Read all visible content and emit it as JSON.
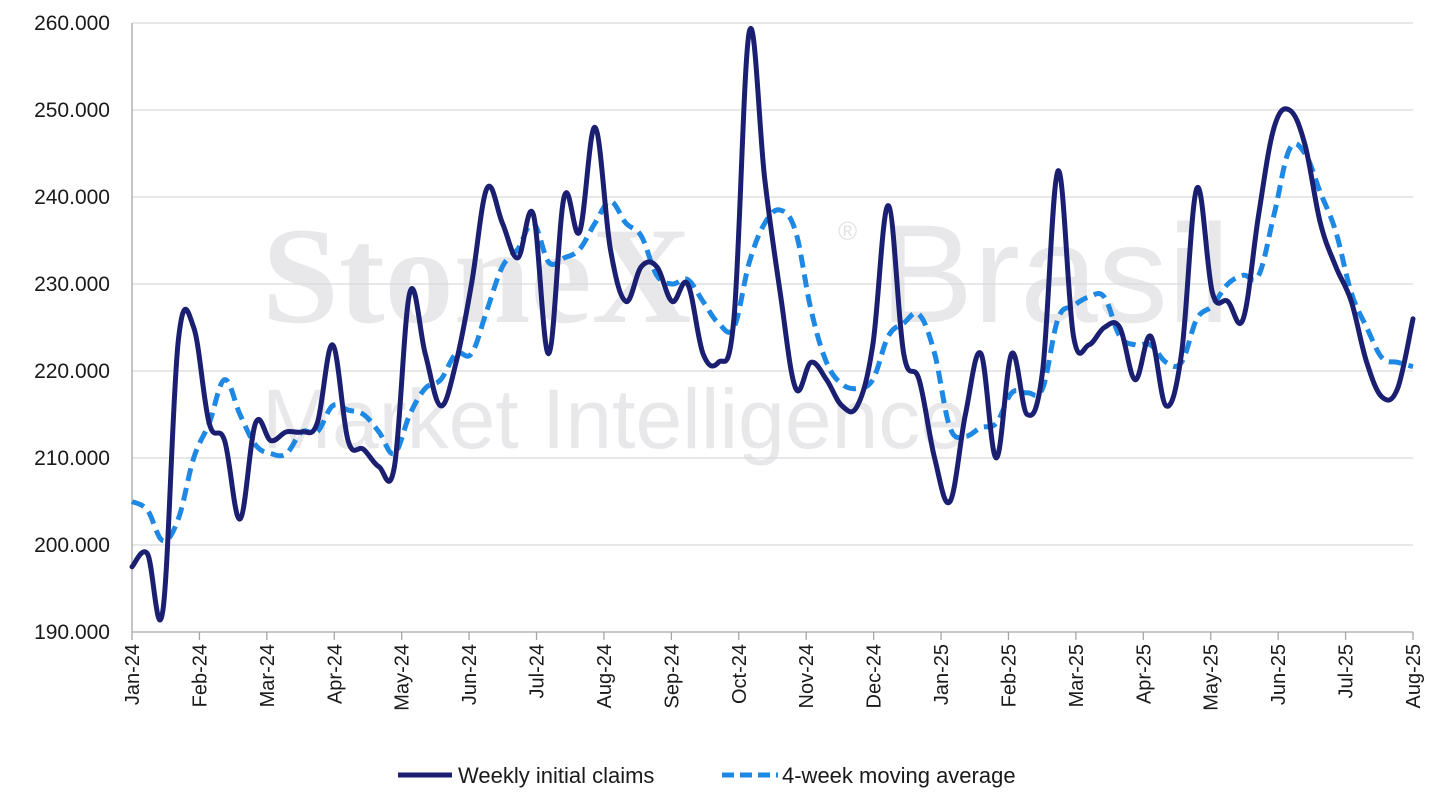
{
  "watermark": {
    "line1_a": "StoneX",
    "line1_mark": "®",
    "line1_b": "Brasil",
    "line2": "Market Intelligence"
  },
  "chart_data": {
    "type": "line",
    "title": "",
    "xlabel": "",
    "ylabel": "",
    "ylim": [
      190000,
      260000
    ],
    "y_ticks": [
      190000,
      200000,
      210000,
      220000,
      230000,
      240000,
      250000,
      260000
    ],
    "y_tick_labels": [
      "190.000",
      "200.000",
      "210.000",
      "220.000",
      "230.000",
      "240.000",
      "250.000",
      "260.000"
    ],
    "x_tick_labels": [
      "Jan-24",
      "Feb-24",
      "Mar-24",
      "Apr-24",
      "May-24",
      "Jun-24",
      "Jul-24",
      "Aug-24",
      "Sep-24",
      "Oct-24",
      "Nov-24",
      "Dec-24",
      "Jan-25",
      "Feb-25",
      "Mar-25",
      "Apr-25",
      "May-25",
      "Jun-25",
      "Jul-25",
      "Aug-25"
    ],
    "grid": true,
    "legend_position": "bottom",
    "series": [
      {
        "name": "Weekly initial claims",
        "color": "#1a1f71",
        "style": "solid",
        "values": [
          197500,
          199000,
          192500,
          223500,
          225000,
          214000,
          212000,
          203000,
          214000,
          212000,
          213000,
          213000,
          214000,
          223000,
          212000,
          211000,
          209000,
          209000,
          229000,
          222000,
          216000,
          221000,
          230000,
          241000,
          237000,
          233000,
          238000,
          222000,
          240000,
          236000,
          248000,
          234000,
          228000,
          232000,
          232000,
          228000,
          230000,
          222000,
          221000,
          226000,
          259000,
          242000,
          229000,
          218000,
          221000,
          219000,
          216000,
          216000,
          223000,
          239000,
          222000,
          219000,
          210000,
          205000,
          215000,
          222000,
          210000,
          222000,
          215000,
          220000,
          243000,
          224000,
          223000,
          225000,
          225000,
          219000,
          224000,
          216000,
          222000,
          241000,
          229000,
          228000,
          226000,
          238000,
          248000,
          250000,
          246000,
          237000,
          232000,
          228000,
          221000,
          217000,
          218000,
          226000
        ],
        "values_start": "Jan-24",
        "values_end": "Aug-25"
      },
      {
        "name": "4-week moving average",
        "color": "#1e88e5",
        "style": "dashed",
        "values": [
          205000,
          204000,
          200500,
          203000,
          210000,
          214000,
          219000,
          215000,
          211500,
          210500,
          210500,
          213000,
          213000,
          216000,
          215500,
          215000,
          213000,
          210500,
          215000,
          218000,
          219000,
          222000,
          222000,
          227000,
          232000,
          234000,
          237000,
          232500,
          233000,
          234000,
          237000,
          239500,
          237000,
          235500,
          231000,
          230000,
          230500,
          228000,
          225500,
          225000,
          232500,
          237000,
          238500,
          236000,
          227000,
          221000,
          218500,
          218000,
          219000,
          224000,
          225500,
          226500,
          222000,
          213500,
          212500,
          213500,
          214000,
          217500,
          217500,
          218000,
          226000,
          227500,
          228500,
          228500,
          224000,
          223000,
          223000,
          221000,
          221000,
          226000,
          227500,
          230000,
          231000,
          231000,
          238000,
          245500,
          245000,
          240500,
          236000,
          229000,
          225000,
          221500,
          221000,
          220500
        ],
        "values_start": "Jan-24",
        "values_end": "Aug-25"
      }
    ]
  }
}
